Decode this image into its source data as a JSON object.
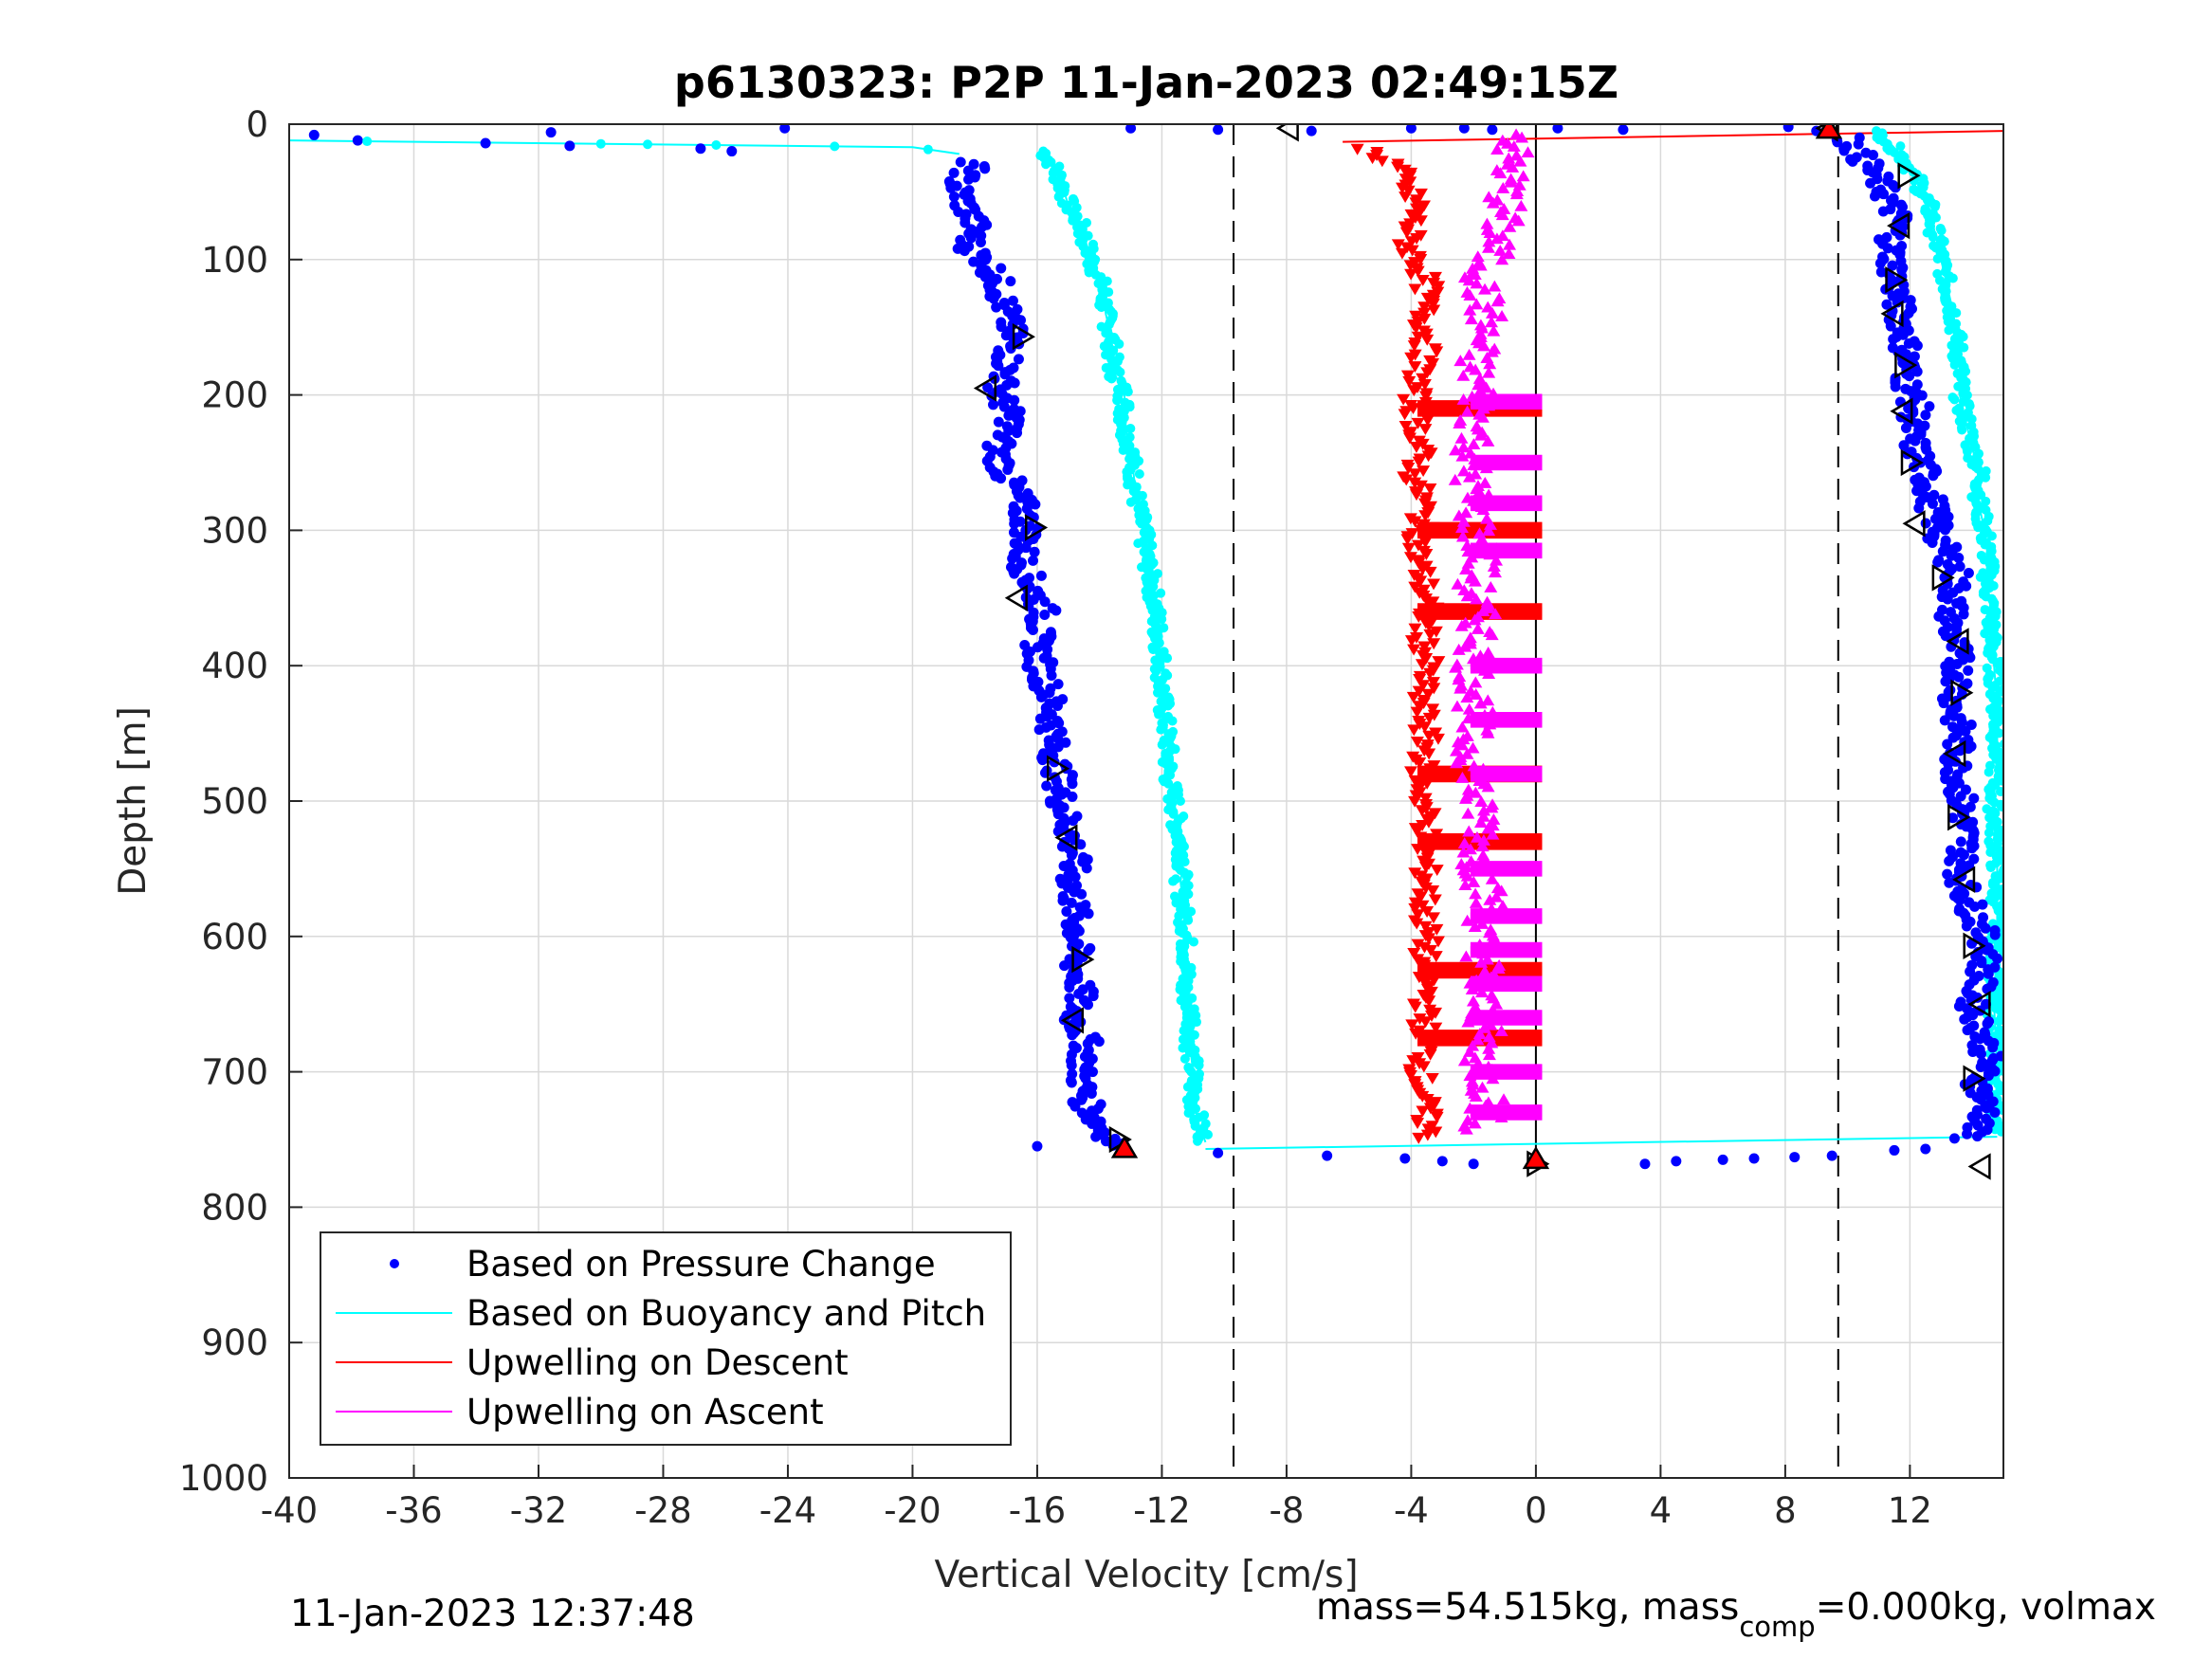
{
  "chart_data": {
    "type": "scatter",
    "title": "p6130323: P2P 11-Jan-2023 02:49:15Z",
    "xlabel": "Vertical Velocity [cm/s]",
    "ylabel": "Depth [m]",
    "xlim": [
      -40,
      15
    ],
    "ylim": [
      0,
      1000
    ],
    "y_reversed": true,
    "x_ticks": [
      -40,
      -36,
      -32,
      -28,
      -24,
      -20,
      -16,
      -12,
      -8,
      -4,
      0,
      4,
      8,
      12
    ],
    "y_ticks": [
      0,
      100,
      200,
      300,
      400,
      500,
      600,
      700,
      800,
      900,
      1000
    ],
    "grid": true,
    "legend_position": "bottom-left",
    "reference_lines": {
      "dashed_x": [
        -9.7,
        9.7
      ],
      "solid_x": [
        0
      ],
      "solid_x_depth_range": [
        0,
        770
      ]
    },
    "series": [
      {
        "name": "Based on Pressure Change",
        "color": "#0000ff",
        "marker": "dot",
        "descent": {
          "depth": [
            10,
            20,
            30,
            45,
            60,
            75,
            90,
            105,
            120,
            140,
            160,
            180,
            200,
            220,
            240,
            260,
            280,
            300,
            320,
            340,
            360,
            380,
            400,
            420,
            440,
            460,
            480,
            500,
            520,
            540,
            560,
            580,
            600,
            620,
            640,
            660,
            680,
            700,
            720,
            740,
            755
          ],
          "velocity": [
            -18.2,
            -18.5,
            -18.0,
            -18.6,
            -18.3,
            -18.0,
            -18.2,
            -17.5,
            -17.2,
            -17.0,
            -16.8,
            -17.0,
            -17.2,
            -16.8,
            -17.3,
            -17.0,
            -16.5,
            -16.3,
            -16.5,
            -16.2,
            -15.8,
            -16.0,
            -15.9,
            -15.6,
            -15.5,
            -15.5,
            -15.3,
            -15.2,
            -15.0,
            -14.8,
            -14.9,
            -14.8,
            -14.7,
            -14.8,
            -14.6,
            -14.8,
            -14.4,
            -14.6,
            -14.5,
            -14.0,
            -13.4
          ]
        },
        "ascent": {
          "depth": [
            750,
            730,
            710,
            690,
            670,
            650,
            630,
            610,
            590,
            570,
            550,
            530,
            510,
            490,
            470,
            450,
            430,
            410,
            390,
            370,
            350,
            330,
            310,
            290,
            270,
            250,
            230,
            210,
            190,
            170,
            150,
            130,
            110,
            90,
            70,
            50,
            35,
            20,
            10
          ],
          "velocity": [
            13.8,
            14.5,
            14.2,
            14.5,
            14.3,
            14.0,
            14.3,
            14.5,
            14.2,
            13.8,
            13.6,
            13.8,
            13.7,
            13.6,
            13.5,
            13.6,
            13.4,
            13.6,
            13.5,
            13.3,
            13.4,
            13.5,
            13.0,
            12.8,
            12.6,
            12.4,
            12.0,
            12.2,
            11.9,
            11.9,
            11.8,
            11.6,
            11.5,
            11.4,
            11.6,
            11.2,
            10.8,
            10.3,
            10.0
          ]
        },
        "surface_points": {
          "velocity": [
            -39.2,
            -37.8,
            -33.7,
            -31.6,
            -31.0,
            -26.8,
            -25.8,
            -24.1,
            -13.0,
            -10.2,
            -7.2,
            -4.0,
            -2.3,
            -1.4,
            0.7,
            2.8,
            8.1,
            9.0
          ],
          "depth": [
            8,
            12,
            14,
            6,
            16,
            18,
            20,
            3,
            3,
            4,
            5,
            3,
            3,
            4,
            3,
            4,
            2,
            5
          ]
        },
        "bottom_points": {
          "velocity": [
            -16.0,
            -13.5,
            -10.2,
            -6.7,
            -4.2,
            -3.0,
            -2.0,
            3.5,
            4.5,
            6.0,
            7.0,
            8.3,
            9.5,
            11.5,
            12.5
          ],
          "depth": [
            755,
            752,
            760,
            762,
            764,
            766,
            768,
            768,
            766,
            765,
            764,
            763,
            762,
            758,
            757
          ]
        }
      },
      {
        "name": "Based on Buoyancy and Pitch",
        "color": "#00ffff",
        "marker": "dot",
        "descent": {
          "depth": [
            20,
            30,
            45,
            60,
            75,
            90,
            105,
            120,
            140,
            160,
            180,
            200,
            220,
            240,
            260,
            280,
            300,
            320,
            340,
            360,
            380,
            400,
            420,
            440,
            460,
            480,
            500,
            520,
            540,
            560,
            580,
            600,
            620,
            640,
            660,
            680,
            700,
            720,
            740,
            752
          ],
          "velocity": [
            -15.8,
            -15.5,
            -15.2,
            -15.0,
            -14.6,
            -14.4,
            -14.2,
            -13.9,
            -13.8,
            -13.6,
            -13.6,
            -13.2,
            -13.2,
            -13.0,
            -12.9,
            -12.8,
            -12.6,
            -12.5,
            -12.3,
            -12.2,
            -12.1,
            -12.0,
            -12.0,
            -11.9,
            -11.8,
            -11.8,
            -11.6,
            -11.5,
            -11.3,
            -11.4,
            -11.3,
            -11.2,
            -11.2,
            -11.3,
            -11.0,
            -11.1,
            -11.0,
            -11.0,
            -10.8,
            -10.6
          ]
        },
        "ascent": {
          "depth": [
            745,
            700,
            650,
            600,
            550,
            500,
            460,
            430,
            400,
            380,
            360,
            340,
            320,
            300,
            280,
            260,
            240,
            220,
            200,
            180,
            160,
            140,
            120,
            100,
            80,
            60,
            40,
            25,
            10,
            5
          ],
          "velocity": [
            14.7,
            14.8,
            14.7,
            14.8,
            14.8,
            14.7,
            14.8,
            14.8,
            14.7,
            14.6,
            14.6,
            14.5,
            14.5,
            14.4,
            14.2,
            14.3,
            14.0,
            13.8,
            13.6,
            13.6,
            13.5,
            13.4,
            13.2,
            13.0,
            12.8,
            12.6,
            12.2,
            11.8,
            11.2,
            10.8
          ]
        },
        "surface_line": {
          "velocity": [
            -40,
            -20,
            -18.5
          ],
          "depth": [
            12,
            17,
            22
          ]
        },
        "bottom_line": {
          "velocity": [
            -10.6,
            14.8
          ],
          "depth": [
            757,
            748
          ]
        }
      },
      {
        "name": "Upwelling on Descent",
        "color": "#ff0000",
        "marker": "triangle-down",
        "depth": [
          18,
          30,
          45,
          60,
          75,
          90,
          105,
          120,
          140,
          160,
          180,
          200,
          220,
          240,
          260,
          280,
          300,
          320,
          340,
          360,
          380,
          400,
          420,
          440,
          460,
          480,
          500,
          520,
          540,
          560,
          580,
          600,
          620,
          640,
          660,
          680,
          700,
          720,
          740,
          750
        ],
        "velocity": [
          -5.5,
          -4.5,
          -4.2,
          -3.8,
          -4.0,
          -4.1,
          -3.7,
          -3.5,
          -3.6,
          -3.5,
          -3.7,
          -3.9,
          -3.8,
          -3.7,
          -3.9,
          -3.6,
          -3.7,
          -3.8,
          -3.6,
          -3.5,
          -3.6,
          -3.5,
          -3.7,
          -3.6,
          -3.5,
          -3.7,
          -3.6,
          -3.5,
          -3.6,
          -3.5,
          -3.6,
          -3.5,
          -3.6,
          -3.5,
          -3.6,
          -3.5,
          -3.7,
          -3.6,
          -3.5,
          -3.4
        ],
        "bands_depth": [
          210,
          300,
          360,
          480,
          530,
          625,
          675
        ],
        "bands_range": [
          -3.8,
          0.2
        ],
        "surface_line": {
          "velocity": [
            -6.2,
            15
          ],
          "depth": [
            13,
            5
          ]
        }
      },
      {
        "name": "Upwelling on Ascent",
        "color": "#ff00ff",
        "marker": "triangle-up",
        "depth": [
          745,
          720,
          700,
          680,
          660,
          640,
          620,
          600,
          580,
          560,
          540,
          520,
          500,
          480,
          460,
          440,
          420,
          400,
          380,
          360,
          340,
          320,
          300,
          280,
          260,
          240,
          220,
          200,
          180,
          160,
          140,
          120,
          100,
          80,
          60,
          40,
          20,
          8
        ],
        "velocity": [
          -1.8,
          -1.5,
          -1.7,
          -1.8,
          -1.6,
          -1.9,
          -1.6,
          -1.8,
          -1.5,
          -1.7,
          -1.9,
          -1.6,
          -2.0,
          -1.8,
          -2.2,
          -2.0,
          -1.9,
          -2.0,
          -1.8,
          -1.9,
          -2.0,
          -1.7,
          -1.9,
          -2.0,
          -2.1,
          -2.0,
          -1.9,
          -1.8,
          -2.0,
          -1.8,
          -1.6,
          -1.8,
          -1.5,
          -1.2,
          -1.0,
          -0.9,
          -0.8,
          -0.5
        ],
        "bands_depth": [
          205,
          250,
          280,
          315,
          400,
          440,
          480,
          550,
          585,
          610,
          635,
          660,
          700,
          730
        ],
        "bands_range": [
          -2.1,
          0.2
        ]
      }
    ],
    "annotations": {
      "black_triangles_descent": {
        "velocity": [
          -16.5,
          -17.6,
          -16.1,
          -16.6,
          -15.4,
          -15.0,
          -14.6,
          -14.8,
          -13.4,
          -7.9
        ],
        "depth": [
          157,
          195,
          298,
          350,
          476,
          527,
          617,
          662,
          750,
          3
        ]
      },
      "black_triangles_ascent": {
        "velocity": [
          9.4,
          11.9,
          11.7,
          11.5,
          11.5,
          11.8,
          11.8,
          12.0,
          12.2,
          13.0,
          13.6,
          13.6,
          13.5,
          13.5,
          13.8,
          14.0,
          14.3,
          14.0,
          14.3,
          0.0
        ],
        "depth": [
          3,
          38,
          75,
          115,
          140,
          178,
          212,
          250,
          295,
          335,
          382,
          420,
          465,
          512,
          558,
          607,
          650,
          705,
          770,
          768
        ]
      },
      "red_triangles": {
        "velocity": [
          -13.2,
          9.4,
          0.0
        ],
        "depth": [
          757,
          4,
          765
        ]
      }
    }
  },
  "legend": {
    "entries": [
      "Based on Pressure Change",
      "Based on Buoyancy and Pitch",
      "Upwelling on Descent",
      "Upwelling on Ascent"
    ]
  },
  "footer": {
    "timestamp": "11-Jan-2023 12:37:48",
    "mass_text_a": "mass=54.515kg, mass",
    "mass_sub": "comp",
    "mass_text_b": "=0.000kg, volmax"
  }
}
